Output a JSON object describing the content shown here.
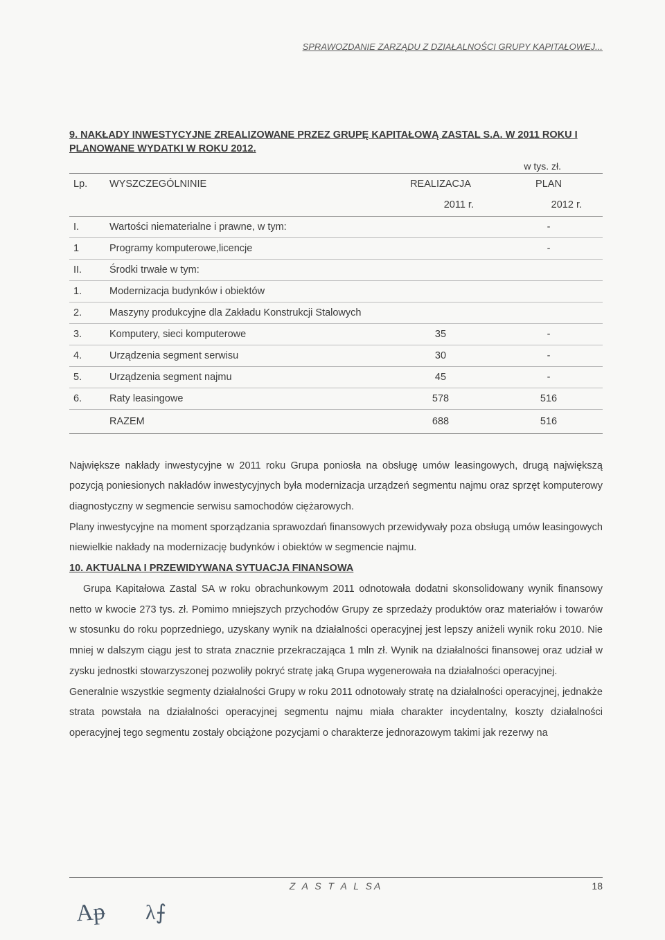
{
  "running_head": "SPRAWOZDANIE ZARZĄDU Z DZIAŁALNOŚCI GRUPY KAPITAŁOWEJ...",
  "section": {
    "title_line1": "9. NAKŁADY INWESTYCYJNE ZREALIZOWANE PRZEZ GRUPĘ KAPITAŁOWĄ ZASTAL S.A.  W 2011 ROKU I",
    "title_line2": "PLANOWANE   WYDATKI W ROKU 2012.",
    "unit_label": "w tys. zł."
  },
  "table": {
    "headers": {
      "lp": "Lp.",
      "desc": "WYSZCZEGÓLNINIE",
      "realizacja": "REALIZACJA",
      "plan": "PLAN",
      "year_real": "2011 r.",
      "year_plan": "2012 r."
    },
    "rows": [
      {
        "lp": "I.",
        "desc": "Wartości niematerialne i prawne, w tym:",
        "real": "",
        "plan": "-"
      },
      {
        "lp": "1",
        "desc": "Programy komputerowe,licencje",
        "real": "",
        "plan": "-"
      },
      {
        "lp": "II.",
        "desc": "Środki trwałe  w tym:",
        "real": "",
        "plan": ""
      },
      {
        "lp": "1.",
        "desc": "Modernizacja budynków i obiektów",
        "real": "",
        "plan": ""
      },
      {
        "lp": "2.",
        "desc": "Maszyny produkcyjne dla Zakładu Konstrukcji Stalowych",
        "real": "",
        "plan": ""
      },
      {
        "lp": "3.",
        "desc": "Komputery, sieci komputerowe",
        "real": "35",
        "plan": "-"
      },
      {
        "lp": "4.",
        "desc": "Urządzenia segment serwisu",
        "real": "30",
        "plan": "-"
      },
      {
        "lp": "5.",
        "desc": "Urządzenia segment najmu",
        "real": "45",
        "plan": "-"
      },
      {
        "lp": "6.",
        "desc": "Raty leasingowe",
        "real": "578",
        "plan": "516"
      }
    ],
    "total": {
      "label": "RAZEM",
      "real": "688",
      "plan": "516"
    }
  },
  "paragraphs": {
    "p1": "Największe nakłady inwestycyjne w 2011 roku Grupa poniosła na obsługę umów leasingowych, drugą największą pozycją poniesionych nakładów inwestycyjnych była modernizacja urządzeń segmentu najmu oraz sprzęt komputerowy diagnostyczny w segmencie serwisu samochodów ciężarowych.",
    "p2": "Plany inwestycyjne na moment sporządzania sprawozdań finansowych przewidywały poza obsługą umów leasingowych niewielkie nakłady na modernizację budynków i obiektów w segmencie najmu.",
    "subtitle": "10. AKTUALNA I PRZEWIDYWANA SYTUACJA FINANSOWA",
    "p3": "Grupa Kapitałowa Zastal SA w roku obrachunkowym 2011 odnotowała dodatni skonsolidowany wynik finansowy netto w kwocie 273 tys.  zł. Pomimo mniejszych przychodów Grupy ze sprzedaży produktów oraz materiałów i towarów w stosunku do roku poprzedniego, uzyskany wynik na działalności operacyjnej jest lepszy aniżeli wynik roku 2010. Nie mniej w dalszym ciągu jest to strata znacznie przekraczająca 1 mln zł. Wynik na działalności finansowej oraz udział w zysku jednostki stowarzyszonej pozwoliły pokryć stratę jaką Grupa wygenerowała na działalności operacyjnej.",
    "p4": "Generalnie wszystkie segmenty działalności Grupy w roku 2011 odnotowały stratę na działalności operacyjnej, jednakże strata powstała na działalności operacyjnej segmentu najmu miała charakter incydentalny, koszty działalności operacyjnej tego segmentu zostały obciążone pozycjami o charakterze jednorazowym takimi jak rezerwy na"
  },
  "footer": {
    "brand": "Z A S T A L   SA",
    "page": "18"
  },
  "colors": {
    "text": "#3a3a3a",
    "border": "#888888",
    "row_border": "#bbbbbb",
    "bg": "#f8f8f6"
  }
}
